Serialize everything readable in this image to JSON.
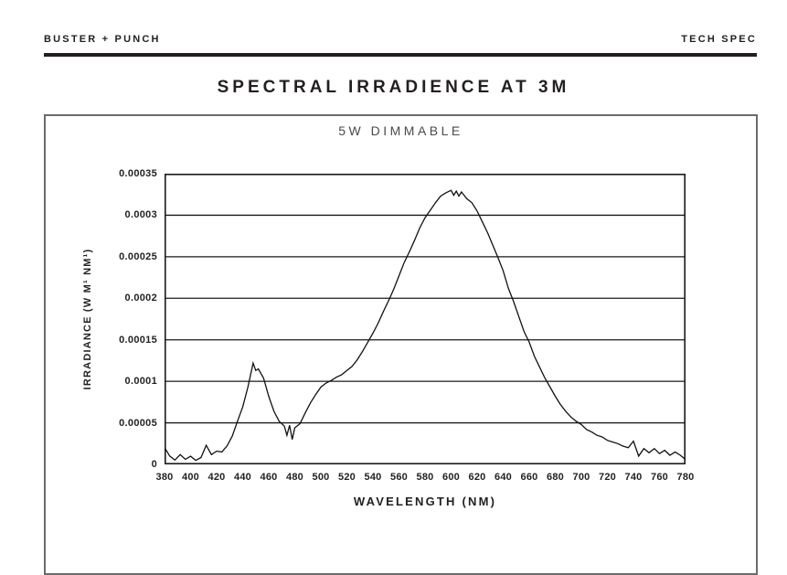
{
  "header": {
    "brand": "BUSTER + PUNCH",
    "doc_type": "TECH SPEC"
  },
  "title": "SPECTRAL IRRADIENCE AT 3M",
  "panel": {
    "subtitle": "5W DIMMABLE"
  },
  "chart_data": {
    "type": "line",
    "title": "5W DIMMABLE",
    "xlabel": "WAVELENGTH (NM)",
    "ylabel": "IRRADIANCE (W M¹ NM¹)",
    "xlim": [
      380,
      780
    ],
    "ylim": [
      0,
      0.00035
    ],
    "xticks": [
      380,
      400,
      420,
      440,
      460,
      480,
      500,
      520,
      540,
      560,
      580,
      600,
      620,
      640,
      660,
      680,
      700,
      720,
      740,
      760,
      780
    ],
    "ytick_labels_top_to_bottom": [
      "0.00035",
      "0.0003",
      "0.00025",
      "0.0002",
      "0.00015",
      "0.0001",
      "0.00005",
      "0"
    ],
    "yticks": [
      0,
      5e-05,
      0.0001,
      0.00015,
      0.0002,
      0.00025,
      0.0003,
      0.00035
    ],
    "grid": "horizontal",
    "legend": false,
    "line_color": "#111111",
    "grid_color": "#1a1a1a",
    "series": [
      {
        "name": "5W dimmable spectral irradiance",
        "points": [
          [
            380,
            2.05e-05
          ],
          [
            384,
            1e-05
          ],
          [
            388,
            5.2e-06
          ],
          [
            392,
            1.18e-05
          ],
          [
            396,
            6e-06
          ],
          [
            400,
            9.8e-06
          ],
          [
            404,
            4.8e-06
          ],
          [
            408,
            8.2e-06
          ],
          [
            412,
            2.3e-05
          ],
          [
            416,
            1.18e-05
          ],
          [
            420,
            1.6e-05
          ],
          [
            424,
            1.5e-05
          ],
          [
            428,
            2.22e-05
          ],
          [
            432,
            3.4e-05
          ],
          [
            436,
            5.2e-05
          ],
          [
            440,
            6.9e-05
          ],
          [
            444,
            9.3e-05
          ],
          [
            448,
            0.000122
          ],
          [
            450,
            0.000113
          ],
          [
            452,
            0.000115
          ],
          [
            456,
            0.000104
          ],
          [
            460,
            8.2e-05
          ],
          [
            464,
            6.4e-05
          ],
          [
            468,
            5.2e-05
          ],
          [
            472,
            4.6e-05
          ],
          [
            474,
            3.5e-05
          ],
          [
            476,
            4.7e-05
          ],
          [
            478,
            3e-05
          ],
          [
            480,
            4.4e-05
          ],
          [
            484,
            4.9e-05
          ],
          [
            488,
            6.2e-05
          ],
          [
            492,
            7.4e-05
          ],
          [
            496,
            8.4e-05
          ],
          [
            500,
            9.3e-05
          ],
          [
            504,
            9.8e-05
          ],
          [
            508,
            0.000101
          ],
          [
            512,
            0.000105
          ],
          [
            516,
            0.000108
          ],
          [
            520,
            0.000113
          ],
          [
            524,
            0.000118
          ],
          [
            528,
            0.000126
          ],
          [
            532,
            0.000136
          ],
          [
            536,
            0.000147
          ],
          [
            540,
            0.000158
          ],
          [
            544,
            0.00017
          ],
          [
            548,
            0.000184
          ],
          [
            552,
            0.000197
          ],
          [
            556,
            0.000211
          ],
          [
            560,
            0.000227
          ],
          [
            564,
            0.000243
          ],
          [
            568,
            0.000256
          ],
          [
            572,
            0.00027
          ],
          [
            576,
            0.000285
          ],
          [
            580,
            0.000297
          ],
          [
            584,
            0.000306
          ],
          [
            588,
            0.000315
          ],
          [
            592,
            0.000323
          ],
          [
            596,
            0.000327
          ],
          [
            600,
            0.00033
          ],
          [
            602,
            0.000324
          ],
          [
            604,
            0.000329
          ],
          [
            606,
            0.000323
          ],
          [
            608,
            0.000328
          ],
          [
            612,
            0.00032
          ],
          [
            616,
            0.000315
          ],
          [
            620,
            0.000305
          ],
          [
            624,
            0.000292
          ],
          [
            628,
            0.000279
          ],
          [
            632,
            0.000264
          ],
          [
            636,
            0.000249
          ],
          [
            640,
            0.000233
          ],
          [
            644,
            0.000212
          ],
          [
            648,
            0.000196
          ],
          [
            652,
            0.000178
          ],
          [
            656,
            0.00016
          ],
          [
            660,
            0.000147
          ],
          [
            664,
            0.00013
          ],
          [
            668,
            0.000117
          ],
          [
            672,
            0.000104
          ],
          [
            676,
            9.3e-05
          ],
          [
            680,
            8.2e-05
          ],
          [
            684,
            7.2e-05
          ],
          [
            688,
            6.4e-05
          ],
          [
            692,
            5.7e-05
          ],
          [
            696,
            5.2e-05
          ],
          [
            700,
            4.8e-05
          ],
          [
            704,
            4.2e-05
          ],
          [
            708,
            3.9e-05
          ],
          [
            712,
            3.5e-05
          ],
          [
            716,
            3.3e-05
          ],
          [
            720,
            2.9e-05
          ],
          [
            724,
            2.7e-05
          ],
          [
            728,
            2.5e-05
          ],
          [
            732,
            2.2e-05
          ],
          [
            736,
            2e-05
          ],
          [
            740,
            2.8e-05
          ],
          [
            744,
            1e-05
          ],
          [
            748,
            1.9e-05
          ],
          [
            752,
            1.4e-05
          ],
          [
            756,
            1.9e-05
          ],
          [
            760,
            1.3e-05
          ],
          [
            764,
            1.7e-05
          ],
          [
            768,
            1.1e-05
          ],
          [
            772,
            1.5e-05
          ],
          [
            776,
            1.1e-05
          ],
          [
            780,
            5.8e-06
          ]
        ]
      }
    ]
  }
}
